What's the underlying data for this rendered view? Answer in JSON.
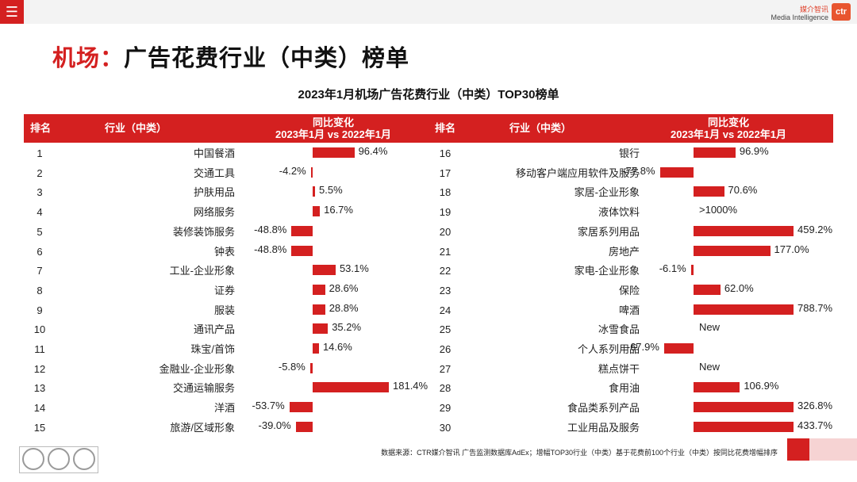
{
  "brand": {
    "cn": "媒介智讯",
    "en": "Media Intelligence",
    "logo": "ctr"
  },
  "header": {
    "title_prefix": "机场：",
    "title_main": "广告花费行业（中类）榜单"
  },
  "colors": {
    "accent": "#d42020",
    "bar": "#d42020",
    "header_text": "#ffffff"
  },
  "columns": {
    "rank": "排名",
    "industry": "行业（中类）",
    "change_line1": "同比变化",
    "change_line2": "2023年1月 vs 2022年1月"
  },
  "chart_data": {
    "type": "bar",
    "title": "2023年1月机场广告花费行业（中类）TOP30榜单",
    "xlabel": "2023年1月 vs 2022年1月",
    "ylabel": "同比变化",
    "left": [
      {
        "rank": "1",
        "name": "中国餐酒",
        "value": 96.4,
        "label": "96.4%"
      },
      {
        "rank": "2",
        "name": "交通工具",
        "value": -4.2,
        "label": "-4.2%"
      },
      {
        "rank": "3",
        "name": "护肤用品",
        "value": 5.5,
        "label": "5.5%"
      },
      {
        "rank": "4",
        "name": "网络服务",
        "value": 16.7,
        "label": "16.7%"
      },
      {
        "rank": "5",
        "name": "装修装饰服务",
        "value": -48.8,
        "label": "-48.8%"
      },
      {
        "rank": "6",
        "name": "钟表",
        "value": -48.8,
        "label": "-48.8%"
      },
      {
        "rank": "7",
        "name": "工业-企业形象",
        "value": 53.1,
        "label": "53.1%"
      },
      {
        "rank": "8",
        "name": "证券",
        "value": 28.6,
        "label": "28.6%"
      },
      {
        "rank": "9",
        "name": "服装",
        "value": 28.8,
        "label": "28.8%"
      },
      {
        "rank": "10",
        "name": "通讯产品",
        "value": 35.2,
        "label": "35.2%"
      },
      {
        "rank": "11",
        "name": "珠宝/首饰",
        "value": 14.6,
        "label": "14.6%"
      },
      {
        "rank": "12",
        "name": "金融业-企业形象",
        "value": -5.8,
        "label": "-5.8%"
      },
      {
        "rank": "13",
        "name": "交通运输服务",
        "value": 181.4,
        "label": "181.4%"
      },
      {
        "rank": "14",
        "name": "洋酒",
        "value": -53.7,
        "label": "-53.7%"
      },
      {
        "rank": "15",
        "name": "旅游/区域形象",
        "value": -39.0,
        "label": "-39.0%"
      }
    ],
    "right": [
      {
        "rank": "16",
        "name": "银行",
        "value": 96.9,
        "label": "96.9%"
      },
      {
        "rank": "17",
        "name": "移动客户端应用软件及服务",
        "value": -77.8,
        "label": "-77.8%"
      },
      {
        "rank": "18",
        "name": "家居-企业形象",
        "value": 70.6,
        "label": "70.6%"
      },
      {
        "rank": "19",
        "name": "液体饮料",
        "value": null,
        "label": ">1000%"
      },
      {
        "rank": "20",
        "name": "家居系列用品",
        "value": 459.2,
        "label": "459.2%"
      },
      {
        "rank": "21",
        "name": "房地产",
        "value": 177.0,
        "label": "177.0%"
      },
      {
        "rank": "22",
        "name": "家电-企业形象",
        "value": -6.1,
        "label": "-6.1%"
      },
      {
        "rank": "23",
        "name": "保险",
        "value": 62.0,
        "label": "62.0%"
      },
      {
        "rank": "24",
        "name": "啤酒",
        "value": 788.7,
        "label": "788.7%"
      },
      {
        "rank": "25",
        "name": "冰雪食品",
        "value": null,
        "label": "New"
      },
      {
        "rank": "26",
        "name": "个人系列用品",
        "value": -67.9,
        "label": "-67.9%"
      },
      {
        "rank": "27",
        "name": "糕点饼干",
        "value": null,
        "label": "New"
      },
      {
        "rank": "28",
        "name": "食用油",
        "value": 106.9,
        "label": "106.9%"
      },
      {
        "rank": "29",
        "name": "食品类系列产品",
        "value": 326.8,
        "label": "326.8%"
      },
      {
        "rank": "30",
        "name": "工业用品及服务",
        "value": 433.7,
        "label": "433.7%"
      }
    ]
  },
  "footnote": "数据来源：CTR媒介智讯 广告监测数据库AdEx；增幅TOP30行业（中类）基于花费前100个行业（中类）按同比花费增幅排序"
}
